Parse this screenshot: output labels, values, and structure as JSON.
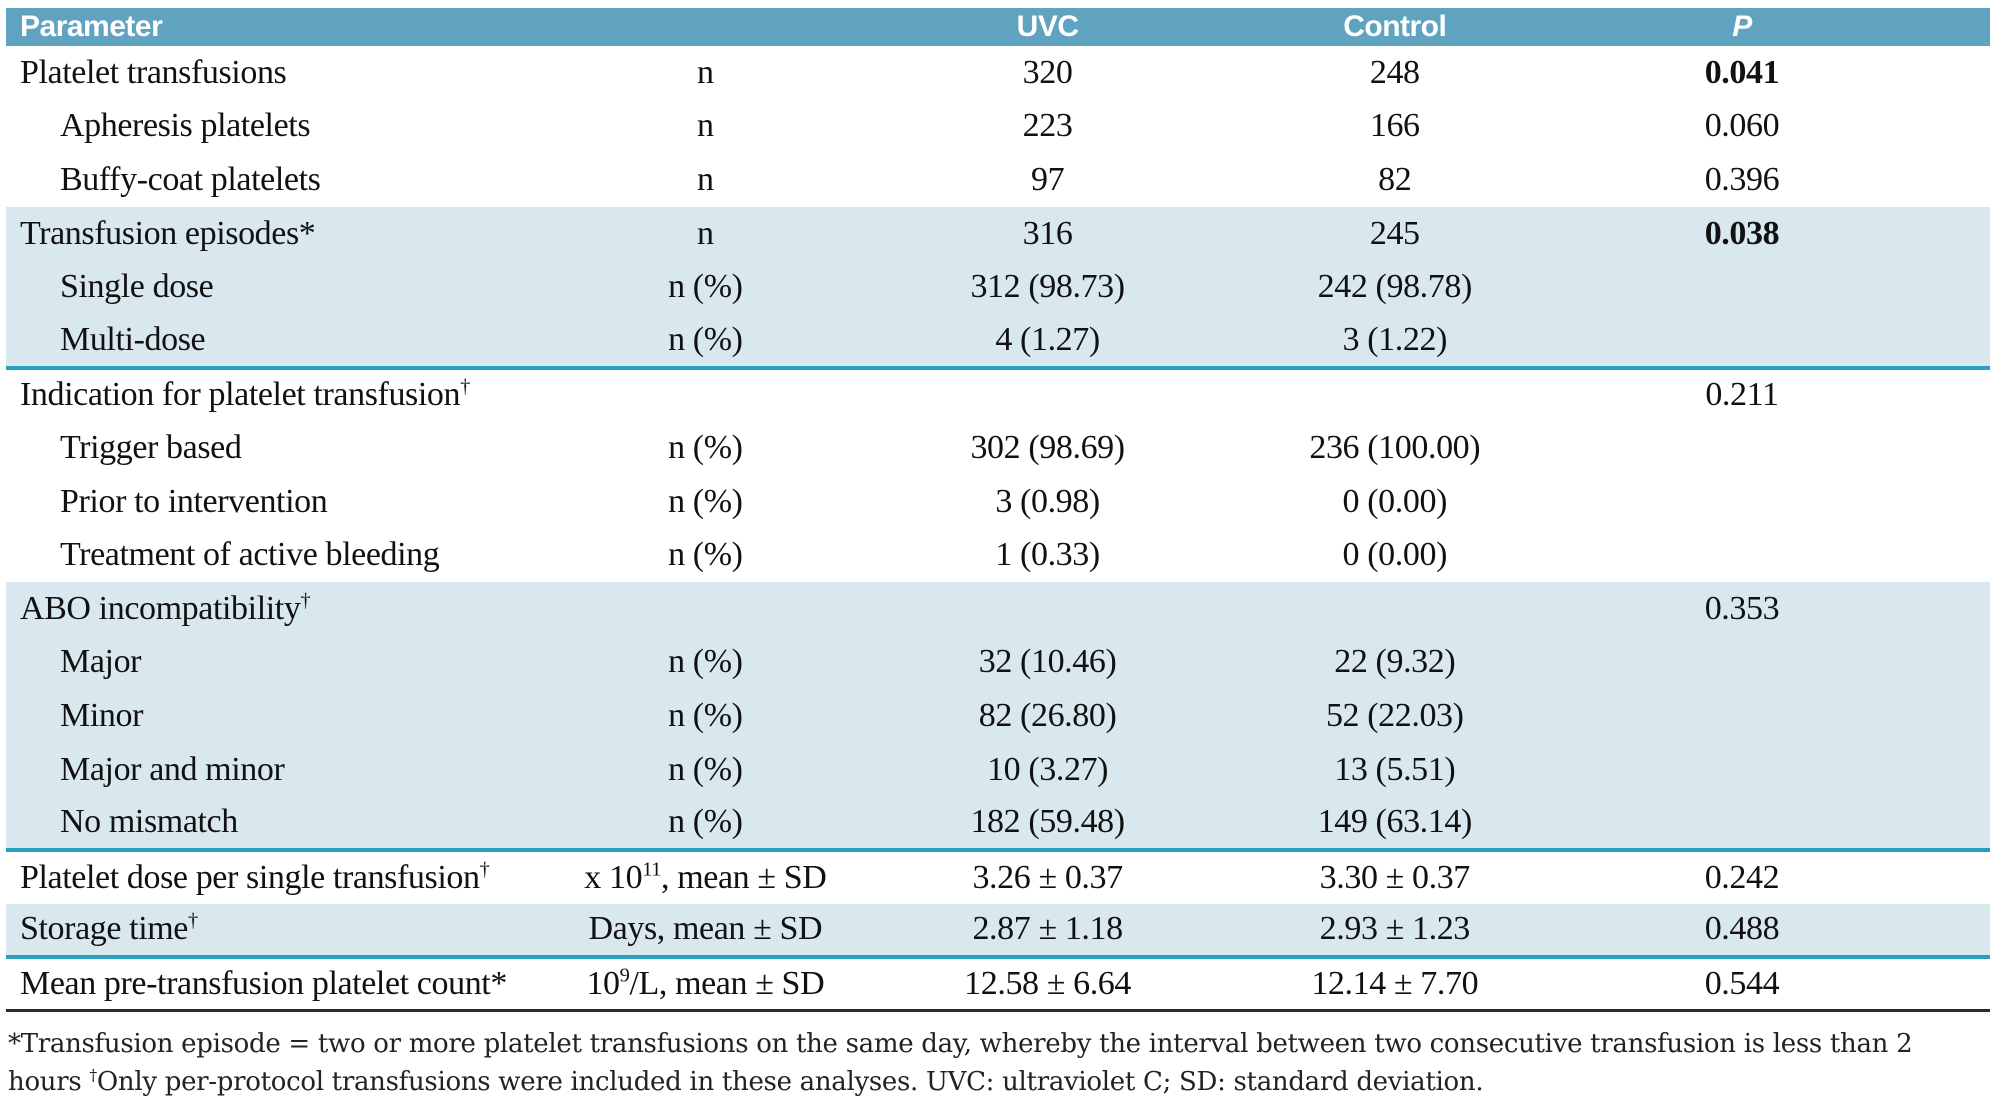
{
  "colors": {
    "header_bg": "#60a3c1",
    "row_alt_bg": "#d9e8ef",
    "separator": "#2aa0c0",
    "bottom_border": "#2b2b2b"
  },
  "table": {
    "columns": {
      "parameter": "Parameter",
      "uvc": "UVC",
      "control": "Control",
      "p": "P"
    },
    "rows": [
      {
        "label": "Platelet transfusions",
        "label_sup": "",
        "indent": false,
        "unit": [
          {
            "t": "n"
          }
        ],
        "uvc": "320",
        "control": "248",
        "p": "0.041",
        "p_bold": true,
        "bg": "white",
        "separator_after": false
      },
      {
        "label": "Apheresis platelets",
        "label_sup": "",
        "indent": true,
        "unit": [
          {
            "t": "n"
          }
        ],
        "uvc": "223",
        "control": "166",
        "p": "0.060",
        "p_bold": false,
        "bg": "white",
        "separator_after": false
      },
      {
        "label": "Buffy-coat platelets",
        "label_sup": "",
        "indent": true,
        "unit": [
          {
            "t": "n"
          }
        ],
        "uvc": "97",
        "control": "82",
        "p": "0.396",
        "p_bold": false,
        "bg": "white",
        "separator_after": false
      },
      {
        "label": "Transfusion episodes*",
        "label_sup": "",
        "indent": false,
        "unit": [
          {
            "t": "n"
          }
        ],
        "uvc": "316",
        "control": "245",
        "p": "0.038",
        "p_bold": true,
        "bg": "blue",
        "separator_after": false
      },
      {
        "label": "Single dose",
        "label_sup": "",
        "indent": true,
        "unit": [
          {
            "t": "n (%)"
          }
        ],
        "uvc": "312 (98.73)",
        "control": "242 (98.78)",
        "p": "",
        "p_bold": false,
        "bg": "blue",
        "separator_after": false
      },
      {
        "label": "Multi-dose",
        "label_sup": "",
        "indent": true,
        "unit": [
          {
            "t": "n (%)"
          }
        ],
        "uvc": "4 (1.27)",
        "control": "3 (1.22)",
        "p": "",
        "p_bold": false,
        "bg": "blue",
        "separator_after": true
      },
      {
        "label": "Indication for platelet transfusion",
        "label_sup": "†",
        "indent": false,
        "unit": [],
        "uvc": "",
        "control": "",
        "p": "0.211",
        "p_bold": false,
        "bg": "white",
        "separator_after": false
      },
      {
        "label": "Trigger based",
        "label_sup": "",
        "indent": true,
        "unit": [
          {
            "t": "n (%)"
          }
        ],
        "uvc": "302 (98.69)",
        "control": "236 (100.00)",
        "p": "",
        "p_bold": false,
        "bg": "white",
        "separator_after": false
      },
      {
        "label": "Prior to intervention",
        "label_sup": "",
        "indent": true,
        "unit": [
          {
            "t": "n (%)"
          }
        ],
        "uvc": "3 (0.98)",
        "control": "0 (0.00)",
        "p": "",
        "p_bold": false,
        "bg": "white",
        "separator_after": false
      },
      {
        "label": "Treatment of active bleeding",
        "label_sup": "",
        "indent": true,
        "unit": [
          {
            "t": "n (%)"
          }
        ],
        "uvc": "1 (0.33)",
        "control": "0 (0.00)",
        "p": "",
        "p_bold": false,
        "bg": "white",
        "separator_after": false
      },
      {
        "label": "ABO incompatibility",
        "label_sup": "†",
        "indent": false,
        "unit": [],
        "uvc": "",
        "control": "",
        "p": "0.353",
        "p_bold": false,
        "bg": "blue",
        "separator_after": false
      },
      {
        "label": "Major",
        "label_sup": "",
        "indent": true,
        "unit": [
          {
            "t": "n (%)"
          }
        ],
        "uvc": "32 (10.46)",
        "control": "22 (9.32)",
        "p": "",
        "p_bold": false,
        "bg": "blue",
        "separator_after": false
      },
      {
        "label": "Minor",
        "label_sup": "",
        "indent": true,
        "unit": [
          {
            "t": "n (%)"
          }
        ],
        "uvc": "82 (26.80)",
        "control": "52 (22.03)",
        "p": "",
        "p_bold": false,
        "bg": "blue",
        "separator_after": false
      },
      {
        "label": "Major and minor",
        "label_sup": "",
        "indent": true,
        "unit": [
          {
            "t": "n (%)"
          }
        ],
        "uvc": "10 (3.27)",
        "control": "13 (5.51)",
        "p": "",
        "p_bold": false,
        "bg": "blue",
        "separator_after": false
      },
      {
        "label": "No mismatch",
        "label_sup": "",
        "indent": true,
        "unit": [
          {
            "t": "n (%)"
          }
        ],
        "uvc": "182 (59.48)",
        "control": "149 (63.14)",
        "p": "",
        "p_bold": false,
        "bg": "blue",
        "separator_after": true
      },
      {
        "label": "Platelet dose per single transfusion",
        "label_sup": "†",
        "indent": false,
        "unit": [
          {
            "t": "x 10"
          },
          {
            "t": "11",
            "sup": true
          },
          {
            "t": ", mean ± SD"
          }
        ],
        "uvc": "3.26 ± 0.37",
        "control": "3.30 ± 0.37",
        "p": "0.242",
        "p_bold": false,
        "bg": "white",
        "separator_after": false
      },
      {
        "label": "Storage time",
        "label_sup": "†",
        "indent": false,
        "unit": [
          {
            "t": "Days, mean ± SD"
          }
        ],
        "uvc": "2.87 ± 1.18",
        "control": "2.93 ± 1.23",
        "p": "0.488",
        "p_bold": false,
        "bg": "blue",
        "separator_after": true
      },
      {
        "label": "Mean pre-transfusion platelet count*",
        "label_sup": "",
        "indent": false,
        "unit": [
          {
            "t": "10"
          },
          {
            "t": "9",
            "sup": true
          },
          {
            "t": "/L, mean ± SD"
          }
        ],
        "uvc": "12.58 ± 6.64",
        "control": "12.14 ± 7.70",
        "p": "0.544",
        "p_bold": false,
        "bg": "white",
        "separator_after": false
      }
    ]
  },
  "footnote": {
    "segments": [
      {
        "t": "*Transfusion episode = two or more platelet transfusions on the same day, whereby the interval between two consecutive transfusion is less than 2 hours "
      },
      {
        "t": "†",
        "sup": true
      },
      {
        "t": "Only per-protocol transfusions were included in these analyses. UVC: ultraviolet C; SD: standard deviation."
      }
    ]
  }
}
